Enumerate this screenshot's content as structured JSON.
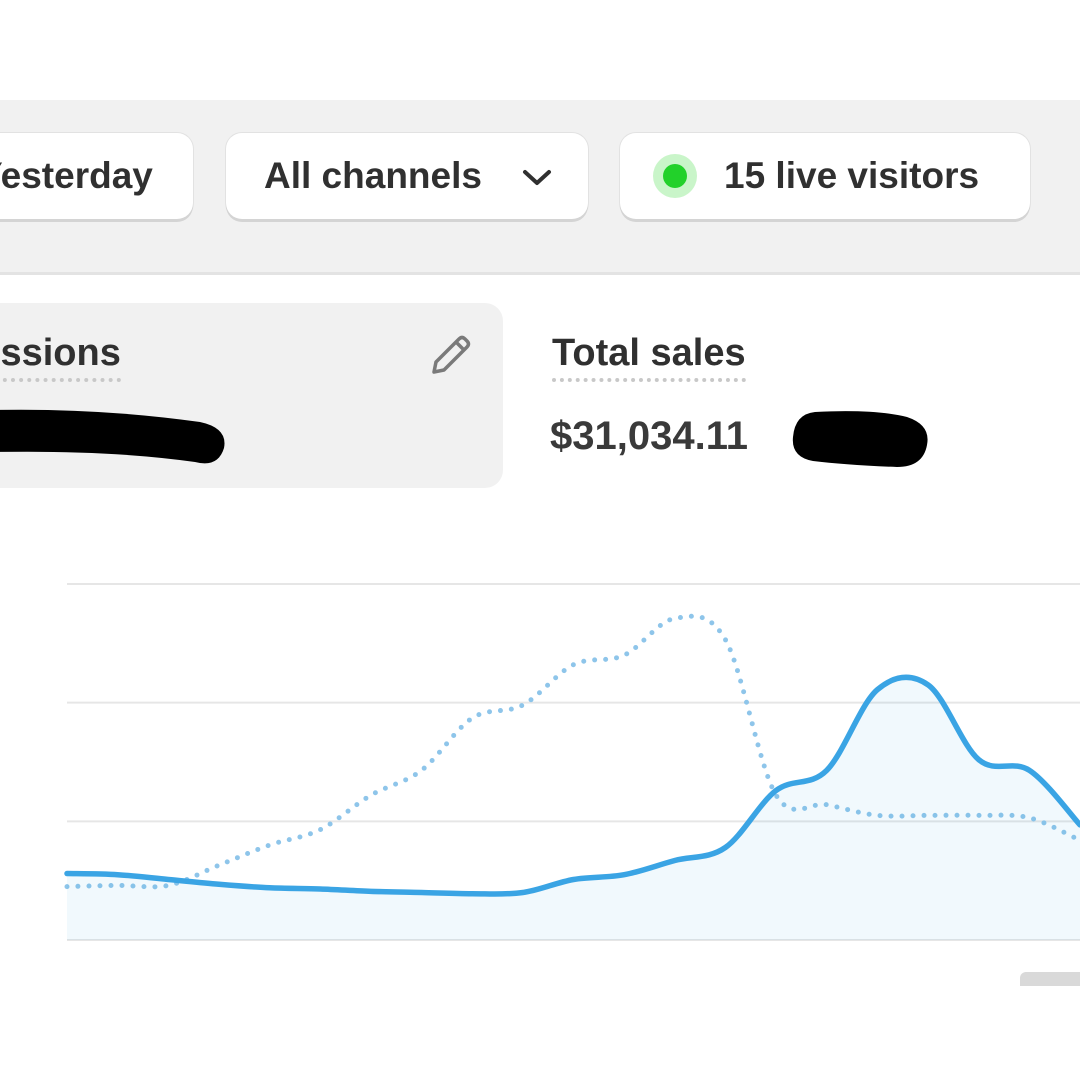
{
  "toolbar": {
    "date_button": "Yesterday",
    "channel_button": "All channels",
    "live_visitors": "15 live visitors"
  },
  "metrics": [
    {
      "label": "Sessions"
    },
    {
      "label": "Total sales",
      "value": "$31,034.11"
    }
  ],
  "chart_data": {
    "type": "line",
    "categories": [
      null,
      null,
      null,
      null,
      null,
      null,
      null,
      null,
      null,
      null,
      null,
      null,
      null,
      null,
      null,
      null,
      null,
      null,
      null,
      null,
      null
    ],
    "series": [
      {
        "color": "#8ec5ea",
        "style": "dotted",
        "values": [
          0.45,
          0.46,
          0.46,
          0.63,
          0.8,
          0.93,
          1.22,
          1.43,
          1.87,
          1.98,
          2.32,
          2.4,
          2.71,
          2.53,
          1.22,
          1.14,
          1.05,
          1.05,
          1.05,
          1.03,
          0.84
        ]
      },
      {
        "color": "#3aa4e4",
        "style": "solid",
        "area": true,
        "values": [
          0.56,
          0.55,
          0.51,
          0.47,
          0.44,
          0.43,
          0.41,
          0.4,
          0.39,
          0.4,
          0.51,
          0.55,
          0.67,
          0.78,
          1.26,
          1.43,
          2.11,
          2.15,
          1.52,
          1.43,
          0.97
        ]
      }
    ],
    "ylim": [
      0,
      3
    ],
    "yticks": [
      0,
      1,
      2,
      3
    ],
    "grid": true
  }
}
